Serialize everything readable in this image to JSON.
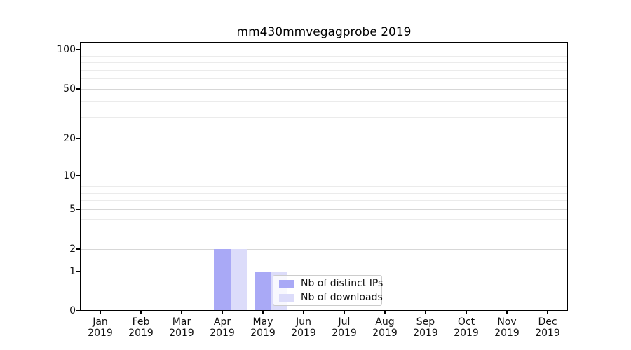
{
  "chart_data": {
    "type": "bar",
    "title": "mm430mmvegagprobe 2019",
    "categories": [
      "Jan",
      "Feb",
      "Mar",
      "Apr",
      "May",
      "Jun",
      "Jul",
      "Aug",
      "Sep",
      "Oct",
      "Nov",
      "Dec"
    ],
    "year_label": "2019",
    "series": [
      {
        "name": "Nb of distinct IPs",
        "color": "#a9a9f6",
        "values": [
          0,
          0,
          0,
          2,
          1,
          0,
          0,
          0,
          0,
          0,
          0,
          0
        ]
      },
      {
        "name": "Nb of downloads",
        "color": "#dcdcfa",
        "values": [
          0,
          0,
          0,
          2,
          1,
          0,
          0,
          0,
          0,
          0,
          0,
          0
        ]
      }
    ],
    "yaxis": {
      "scale": "symlog",
      "ticks": [
        0,
        1,
        2,
        5,
        10,
        20,
        50,
        100
      ],
      "minor_ticks": [
        3,
        4,
        6,
        7,
        8,
        9,
        30,
        40,
        60,
        70,
        80,
        90
      ],
      "ylim": [
        0,
        118
      ]
    },
    "xlabel": "",
    "ylabel": "",
    "grid": true,
    "legend_position": "lower-center"
  }
}
